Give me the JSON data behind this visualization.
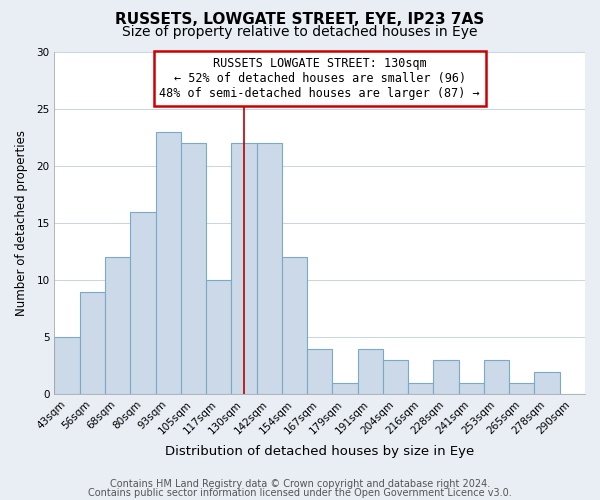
{
  "title": "RUSSETS, LOWGATE STREET, EYE, IP23 7AS",
  "subtitle": "Size of property relative to detached houses in Eye",
  "xlabel": "Distribution of detached houses by size in Eye",
  "ylabel": "Number of detached properties",
  "categories": [
    "43sqm",
    "56sqm",
    "68sqm",
    "80sqm",
    "93sqm",
    "105sqm",
    "117sqm",
    "130sqm",
    "142sqm",
    "154sqm",
    "167sqm",
    "179sqm",
    "191sqm",
    "204sqm",
    "216sqm",
    "228sqm",
    "241sqm",
    "253sqm",
    "265sqm",
    "278sqm",
    "290sqm"
  ],
  "values": [
    5,
    9,
    12,
    16,
    23,
    22,
    10,
    22,
    22,
    12,
    4,
    1,
    4,
    3,
    1,
    3,
    1,
    3,
    1,
    2,
    0
  ],
  "bar_color": "#ccd9e8",
  "bar_edge_color": "#7aaac8",
  "marker_index": 7,
  "marker_color": "#bb0000",
  "ylim": [
    0,
    30
  ],
  "yticks": [
    0,
    5,
    10,
    15,
    20,
    25,
    30
  ],
  "annotation_title": "RUSSETS LOWGATE STREET: 130sqm",
  "annotation_line1": "← 52% of detached houses are smaller (96)",
  "annotation_line2": "48% of semi-detached houses are larger (87) →",
  "footer_line1": "Contains HM Land Registry data © Crown copyright and database right 2024.",
  "footer_line2": "Contains public sector information licensed under the Open Government Licence v3.0.",
  "background_color": "#e8eef4",
  "plot_bg_color": "#ffffff",
  "grid_color": "#c8d4de",
  "title_fontsize": 11,
  "subtitle_fontsize": 10,
  "xlabel_fontsize": 9.5,
  "ylabel_fontsize": 8.5,
  "tick_fontsize": 7.5,
  "footer_fontsize": 7,
  "annotation_fontsize": 8.5
}
